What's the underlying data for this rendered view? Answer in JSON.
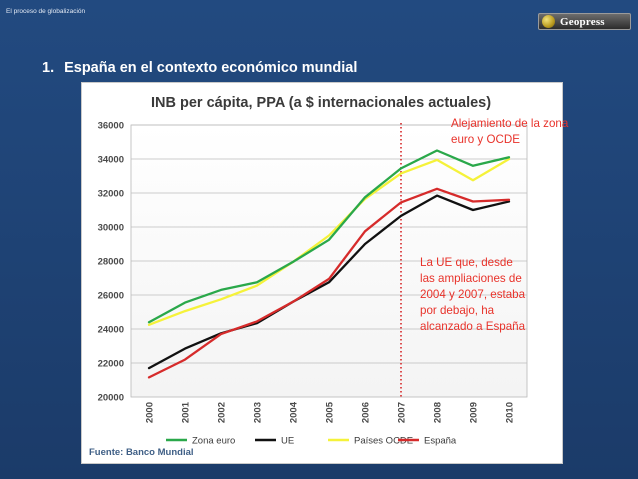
{
  "header": {
    "label": "El proceso de globalización",
    "logo_text": "Geopress"
  },
  "section": {
    "number": "1.",
    "title": "España en el contexto económico mundial"
  },
  "annotations": {
    "top": [
      "Alejamiento de la zona",
      "euro y OCDE"
    ],
    "bottom": [
      "La UE que, desde",
      "las ampliaciones de",
      "2004 y 2007, estaba",
      "por debajo, ha",
      "alcanzado a España"
    ]
  },
  "chart_data": {
    "type": "line",
    "title": "INB per cápita, PPA (a $ internacionales actuales)",
    "source": "Fuente: Banco Mundial",
    "x": [
      "2000",
      "2001",
      "2002",
      "2003",
      "2004",
      "2005",
      "2006",
      "2007",
      "2008",
      "2009",
      "2010"
    ],
    "y_ticks": [
      "36000",
      "34000",
      "32000",
      "30000",
      "28000",
      "26000",
      "24000",
      "22000",
      "20000"
    ],
    "ylim": [
      20000,
      36000
    ],
    "grid": true,
    "legend_position": "bottom",
    "marker_line": {
      "x": "2007",
      "style": "dotted",
      "color": "#d62728"
    },
    "series": [
      {
        "name": "Zona euro",
        "color": "#2aa84a",
        "values": [
          24400,
          25550,
          26300,
          26750,
          27950,
          29250,
          31750,
          33450,
          34500,
          33600,
          34100
        ]
      },
      {
        "name": "UE",
        "color": "#111111",
        "values": [
          21700,
          22850,
          23750,
          24350,
          25600,
          26750,
          29000,
          30650,
          31850,
          31000,
          31500
        ]
      },
      {
        "name": "Países OCDE",
        "color": "#f5f23a",
        "values": [
          24250,
          25050,
          25750,
          26550,
          27950,
          29500,
          31650,
          33150,
          33950,
          32750,
          34000
        ]
      },
      {
        "name": "España",
        "color": "#d62b2b",
        "values": [
          21150,
          22200,
          23700,
          24450,
          25600,
          26950,
          29750,
          31450,
          32250,
          31500,
          31600
        ]
      }
    ]
  }
}
